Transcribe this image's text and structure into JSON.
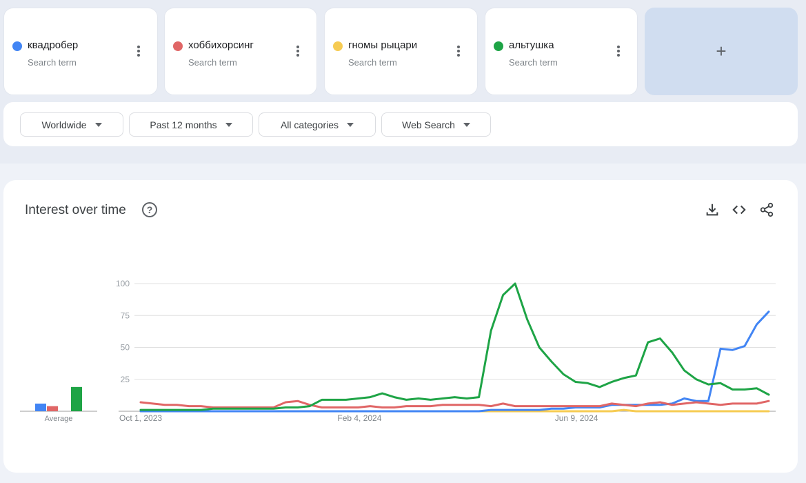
{
  "terms": [
    {
      "name": "квадробер",
      "subtitle": "Search term",
      "color": "#4285f4"
    },
    {
      "name": "хоббихорсинг",
      "subtitle": "Search term",
      "color": "#e06666"
    },
    {
      "name": "гномы рыцари",
      "subtitle": "Search term",
      "color": "#f6cb52"
    },
    {
      "name": "альтушка",
      "subtitle": "Search term",
      "color": "#1ea446"
    }
  ],
  "add_term_label": "+",
  "filters": {
    "region": "Worldwide",
    "period": "Past 12 months",
    "category": "All categories",
    "search_type": "Web Search"
  },
  "panel": {
    "title": "Interest over time",
    "help_icon": "?",
    "icons": [
      "download-icon",
      "embed-code-icon",
      "share-icon"
    ]
  },
  "chart_data": {
    "type": "line",
    "title": "Interest over time",
    "y_ticks": [
      "100",
      "75",
      "50",
      "25"
    ],
    "ylim": [
      0,
      100
    ],
    "x_tick_labels": [
      "Oct 1, 2023",
      "Feb 4, 2024",
      "Jun 9, 2024"
    ],
    "x_tick_weeks": [
      0,
      18,
      36
    ],
    "grid": true,
    "average_label": "Average",
    "averages": [
      {
        "name": "квадробер",
        "value": 6,
        "color": "#4285f4"
      },
      {
        "name": "хоббихорсинг",
        "value": 4,
        "color": "#e06666"
      },
      {
        "name": "гномы рыцари",
        "value": 0,
        "color": "#f6cb52"
      },
      {
        "name": "альтушка",
        "value": 19,
        "color": "#1ea446"
      }
    ],
    "series": [
      {
        "name": "гномы рыцари",
        "color": "#f6cb52",
        "values": [
          0,
          0,
          0,
          0,
          0,
          0,
          0,
          0,
          0,
          0,
          0,
          0,
          0,
          0,
          0,
          0,
          0,
          0,
          0,
          0,
          0,
          0,
          0,
          0,
          0,
          0,
          0,
          0,
          0,
          0,
          0,
          0,
          0,
          0,
          0,
          0,
          0,
          0,
          0,
          0,
          1,
          0,
          0,
          0,
          0,
          0,
          0,
          0,
          0,
          0,
          0,
          0,
          0
        ]
      },
      {
        "name": "квадробер",
        "color": "#4285f4",
        "values": [
          0,
          0,
          0,
          0,
          0,
          0,
          0,
          0,
          0,
          0,
          0,
          0,
          0,
          0,
          0,
          0,
          0,
          0,
          0,
          0,
          0,
          0,
          0,
          0,
          0,
          0,
          0,
          0,
          0,
          1,
          1,
          1,
          1,
          1,
          2,
          2,
          3,
          3,
          3,
          5,
          5,
          5,
          5,
          5,
          6,
          10,
          8,
          8,
          49,
          48,
          51,
          68,
          78
        ]
      },
      {
        "name": "хоббихорсинг",
        "color": "#e06666",
        "values": [
          7,
          6,
          5,
          5,
          4,
          4,
          3,
          3,
          3,
          3,
          3,
          3,
          7,
          8,
          5,
          3,
          3,
          3,
          3,
          4,
          3,
          3,
          4,
          4,
          4,
          5,
          5,
          5,
          5,
          4,
          6,
          4,
          4,
          4,
          4,
          4,
          4,
          4,
          4,
          6,
          5,
          4,
          6,
          7,
          5,
          6,
          7,
          6,
          5,
          6,
          6,
          6,
          8
        ]
      },
      {
        "name": "альтушка",
        "color": "#1ea446",
        "values": [
          1,
          1,
          1,
          1,
          1,
          1,
          2,
          2,
          2,
          2,
          2,
          2,
          3,
          3,
          4,
          9,
          9,
          9,
          10,
          11,
          14,
          11,
          9,
          10,
          9,
          10,
          11,
          10,
          11,
          63,
          91,
          100,
          72,
          50,
          39,
          29,
          23,
          22,
          19,
          23,
          26,
          28,
          54,
          57,
          46,
          32,
          25,
          21,
          22,
          17,
          17,
          18,
          13
        ]
      }
    ]
  }
}
